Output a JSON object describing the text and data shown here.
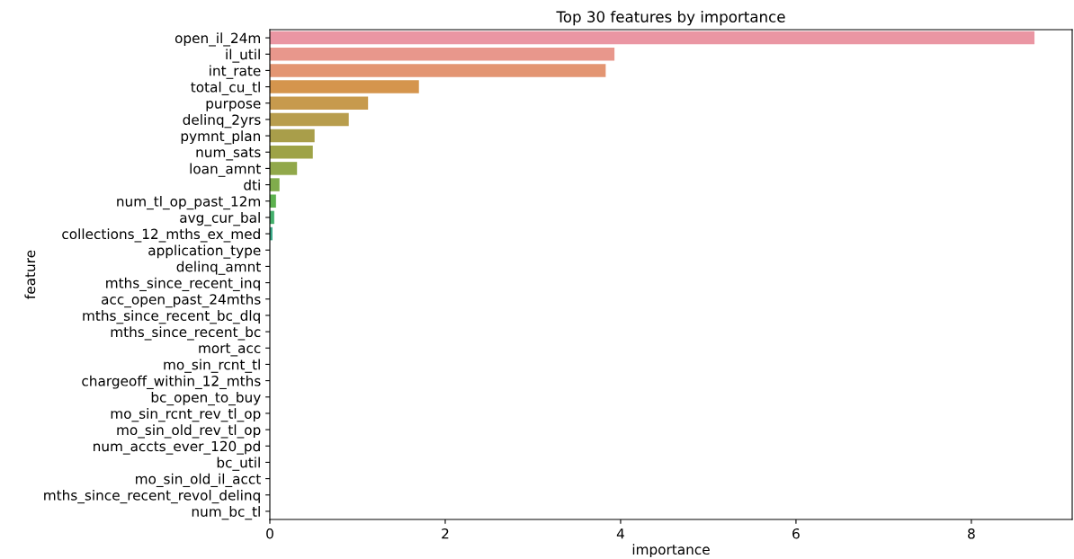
{
  "chart_data": {
    "type": "bar",
    "orientation": "horizontal",
    "title": "Top 30 features by importance",
    "xlabel": "importance",
    "ylabel": "feature",
    "categories": [
      "open_il_24m",
      "il_util",
      "int_rate",
      "total_cu_tl",
      "purpose",
      "delinq_2yrs",
      "pymnt_plan",
      "num_sats",
      "loan_amnt",
      "dti",
      "num_tl_op_past_12m",
      "avg_cur_bal",
      "collections_12_mths_ex_med",
      "application_type",
      "delinq_amnt",
      "mths_since_recent_inq",
      "acc_open_past_24mths",
      "mths_since_recent_bc_dlq",
      "mths_since_recent_bc",
      "mort_acc",
      "mo_sin_rcnt_tl",
      "chargeoff_within_12_mths",
      "bc_open_to_buy",
      "mo_sin_rcnt_rev_tl_op",
      "mo_sin_old_rev_tl_op",
      "num_accts_ever_120_pd",
      "bc_util",
      "mo_sin_old_il_acct",
      "mths_since_recent_revol_delinq",
      "num_bc_tl"
    ],
    "values": [
      8.72,
      3.93,
      3.83,
      1.7,
      1.12,
      0.9,
      0.51,
      0.49,
      0.31,
      0.11,
      0.07,
      0.05,
      0.03,
      0,
      0,
      0,
      0,
      0,
      0,
      0,
      0,
      0,
      0,
      0,
      0,
      0,
      0,
      0,
      0,
      0
    ],
    "colors": [
      "#ea96a3",
      "#e8978c",
      "#e39572",
      "#d5954d",
      "#c79a4d",
      "#b89d4d",
      "#a99e4a",
      "#9ea347",
      "#91a84a",
      "#80ac4c",
      "#5db14e",
      "#45b06c",
      "#3aa987",
      "#3aa99a",
      "#3ba7a6",
      "#3ca6b1",
      "#3ea4bc",
      "#41a2c8",
      "#4b9fd4",
      "#6a9be0",
      "#8c97e4",
      "#a592e4",
      "#b98ee4",
      "#cb89df",
      "#d987d4",
      "#e18bc4",
      "#e58fb8",
      "#e992ad",
      "#ea94a8",
      "#eb96a5"
    ],
    "xlim": [
      0,
      9.15
    ],
    "xticks": [
      0,
      2,
      4,
      6,
      8
    ],
    "grid": false
  }
}
